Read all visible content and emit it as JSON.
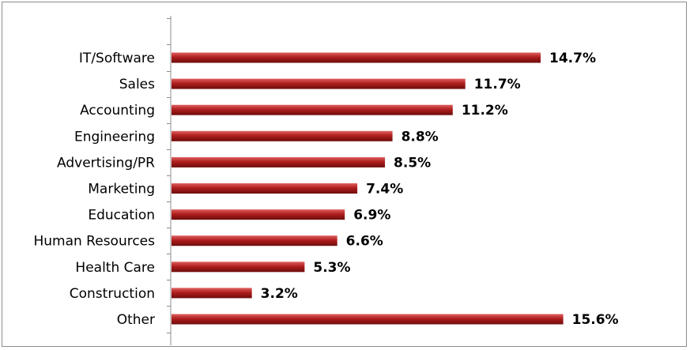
{
  "chart_data": {
    "type": "bar",
    "orientation": "horizontal",
    "categories": [
      "IT/Software",
      "Sales",
      "Accounting",
      "Engineering",
      "Advertising/PR",
      "Marketing",
      "Education",
      "Human Resources",
      "Health Care",
      "Construction",
      "Other"
    ],
    "values": [
      14.7,
      11.7,
      11.2,
      8.8,
      8.5,
      7.4,
      6.9,
      6.6,
      5.3,
      3.2,
      15.6
    ],
    "value_labels": [
      "14.7%",
      "11.7%",
      "11.2%",
      "8.8%",
      "8.5%",
      "7.4%",
      "6.9%",
      "6.6%",
      "5.3%",
      "3.2%",
      "15.6%"
    ],
    "title": "",
    "xlabel": "",
    "ylabel": "",
    "xlim": [
      0,
      18
    ],
    "grid": false,
    "legend": "none",
    "bar_color": "#b22222"
  }
}
